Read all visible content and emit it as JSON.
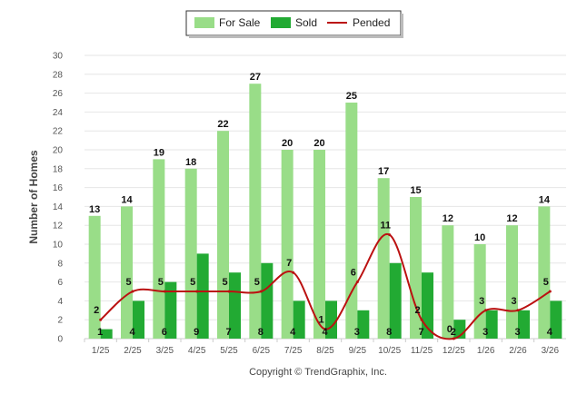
{
  "chart_data": {
    "type": "bar",
    "categories": [
      "1/25",
      "2/25",
      "3/25",
      "4/25",
      "5/25",
      "6/25",
      "7/25",
      "8/25",
      "9/25",
      "10/25",
      "11/25",
      "12/25",
      "1/26",
      "2/26",
      "3/26"
    ],
    "series": [
      {
        "name": "For Sale",
        "type": "bar",
        "color": "#99dd88",
        "values": [
          13,
          14,
          19,
          18,
          22,
          27,
          20,
          20,
          25,
          17,
          15,
          12,
          10,
          12,
          14
        ]
      },
      {
        "name": "Sold",
        "type": "bar",
        "color": "#22aa33",
        "values": [
          1,
          4,
          6,
          9,
          7,
          8,
          4,
          4,
          3,
          8,
          7,
          2,
          3,
          3,
          4
        ]
      },
      {
        "name": "Pended",
        "type": "line",
        "color": "#bb1111",
        "values": [
          2,
          5,
          5,
          5,
          5,
          5,
          7,
          1,
          6,
          11,
          2,
          0,
          3,
          3,
          5
        ]
      }
    ],
    "title": "",
    "xlabel": "",
    "ylabel": "Number of Homes",
    "ylim": [
      0,
      30
    ],
    "yticks": [
      0,
      2,
      4,
      6,
      8,
      10,
      12,
      14,
      16,
      18,
      20,
      22,
      24,
      26,
      28,
      30
    ],
    "grid": true,
    "legend_position": "top-center",
    "data_labels": true
  },
  "legend": {
    "for_sale": "For Sale",
    "sold": "Sold",
    "pended": "Pended"
  },
  "copyright": "Copyright © TrendGraphix, Inc.",
  "colors": {
    "grid": "#e6e6e6",
    "axis": "#cccccc",
    "legend_border": "#333333"
  }
}
